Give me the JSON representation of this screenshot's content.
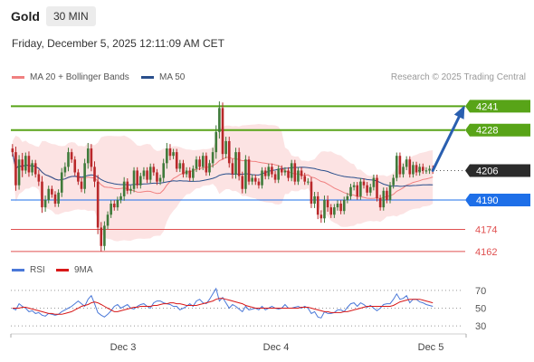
{
  "header": {
    "instrument": "Gold",
    "timeframe": "30 MIN"
  },
  "datetime": "Friday, December 5, 2025 12:11:09 AM CET",
  "credit": "Research © 2025 Trading Central",
  "colors": {
    "up": "#3f7a3a",
    "down": "#b9282a",
    "ma20": "#f08080",
    "ma50": "#2a4f8c",
    "target": "#58a418",
    "pivot": "#1e6fe8",
    "support": "#e05050",
    "arrow": "#2a5fb0",
    "rsi": "#4a78d8",
    "rsi_ma": "#d81818"
  },
  "chart_data": [
    {
      "type": "candlestick",
      "legend": [
        {
          "name": "MA 20 + Bollinger Bands",
          "color": "#f08080"
        },
        {
          "name": "MA 50",
          "color": "#2a4f8c"
        }
      ],
      "x_ticks": [
        "Dec 3",
        "Dec 4",
        "Dec 5"
      ],
      "ylim": [
        4158,
        4251
      ],
      "grid": false,
      "levels": [
        {
          "value": 4241,
          "label": "4241",
          "kind": "target"
        },
        {
          "value": 4228,
          "label": "4228",
          "kind": "target"
        },
        {
          "value": 4206,
          "label": "4206",
          "kind": "current"
        },
        {
          "value": 4190,
          "label": "4190",
          "kind": "pivot"
        },
        {
          "value": 4174,
          "label": "4174",
          "kind": "support"
        },
        {
          "value": 4162,
          "label": "4162",
          "kind": "support"
        }
      ],
      "forecast_arrow": {
        "from": 4206,
        "to": 4240
      },
      "close": [
        4216,
        4198,
        4212,
        4206,
        4214,
        4205,
        4210,
        4204,
        4200,
        4186,
        4190,
        4196,
        4193,
        4188,
        4194,
        4205,
        4208,
        4216,
        4212,
        4205,
        4200,
        4196,
        4210,
        4218,
        4208,
        4200,
        4175,
        4165,
        4176,
        4182,
        4188,
        4186,
        4190,
        4192,
        4200,
        4195,
        4196,
        4206,
        4198,
        4203,
        4206,
        4201,
        4208,
        4205,
        4200,
        4202,
        4210,
        4218,
        4214,
        4216,
        4207,
        4210,
        4204,
        4206,
        4202,
        4207,
        4212,
        4208,
        4214,
        4205,
        4210,
        4216,
        4227,
        4240,
        4215,
        4222,
        4210,
        4204,
        4216,
        4203,
        4196,
        4212,
        4200,
        4202,
        4200,
        4198,
        4206,
        4203,
        4208,
        4204,
        4201,
        4207,
        4205,
        4206,
        4202,
        4210,
        4200,
        4206,
        4203,
        4200,
        4200,
        4188,
        4192,
        4182,
        4180,
        4190,
        4186,
        4182,
        4186,
        4188,
        4184,
        4190,
        4192,
        4197,
        4198,
        4192,
        4200,
        4198,
        4194,
        4197,
        4202,
        4191,
        4186,
        4195,
        4190,
        4198,
        4202,
        4214,
        4204,
        4208,
        4212,
        4204,
        4209,
        4205,
        4208,
        4206,
        4206,
        4207,
        4206
      ],
      "volatility": [
        4,
        5,
        4,
        6,
        3,
        4,
        3,
        3,
        4,
        5,
        4,
        3,
        3,
        3,
        3,
        4,
        4,
        4,
        3,
        3,
        3,
        3,
        4,
        5,
        4,
        5,
        6,
        5,
        4,
        3,
        3,
        3,
        3,
        3,
        4,
        3,
        3,
        3,
        3,
        3,
        3,
        3,
        3,
        3,
        3,
        3,
        4,
        5,
        4,
        3,
        3,
        3,
        3,
        3,
        3,
        3,
        3,
        3,
        3,
        3,
        3,
        4,
        6,
        6,
        5,
        4,
        4,
        4,
        4,
        4,
        4,
        4,
        3,
        3,
        3,
        3,
        3,
        3,
        3,
        3,
        3,
        3,
        3,
        3,
        3,
        3,
        3,
        3,
        3,
        3,
        3,
        4,
        4,
        4,
        4,
        4,
        4,
        3,
        3,
        3,
        3,
        3,
        3,
        3,
        3,
        3,
        3,
        3,
        3,
        3,
        3,
        3,
        3,
        3,
        3,
        3,
        3,
        3,
        3,
        3,
        3,
        3,
        3,
        3,
        3,
        3,
        3,
        3,
        3
      ]
    },
    {
      "type": "line",
      "legend": [
        {
          "name": "RSI",
          "color": "#4a78d8"
        },
        {
          "name": "9MA",
          "color": "#d81818"
        }
      ],
      "y_ticks": [
        70,
        50,
        30
      ],
      "ylim": [
        25,
        78
      ],
      "series": [
        {
          "name": "RSI",
          "values": [
            50,
            48,
            55,
            52,
            50,
            46,
            47,
            44,
            45,
            42,
            41,
            44,
            43,
            42,
            43,
            46,
            48,
            50,
            52,
            55,
            58,
            55,
            52,
            60,
            64,
            55,
            45,
            42,
            40,
            43,
            47,
            52,
            54,
            50,
            52,
            54,
            50,
            49,
            52,
            54,
            55,
            52,
            50,
            56,
            58,
            58,
            56,
            55,
            54,
            52,
            52,
            48,
            50,
            52,
            55,
            52,
            58,
            60,
            56,
            55,
            60,
            66,
            72,
            58,
            62,
            56,
            50,
            54,
            52,
            49,
            46,
            52,
            48,
            49,
            50,
            48,
            52,
            48,
            50,
            52,
            50,
            49,
            50,
            54,
            50,
            50,
            51,
            52,
            50,
            52,
            50,
            44,
            46,
            40,
            39,
            46,
            44,
            44,
            45,
            48,
            48,
            46,
            51,
            55,
            56,
            52,
            56,
            54,
            51,
            53,
            50,
            47,
            50,
            54,
            55,
            55,
            60,
            66,
            60,
            61,
            64,
            56,
            60,
            60,
            57,
            56,
            54,
            53,
            52
          ]
        },
        {
          "name": "9MA",
          "values": [
            50,
            50,
            50,
            51,
            51,
            50,
            49,
            48,
            47,
            46,
            45,
            44,
            44,
            43,
            43,
            43,
            44,
            45,
            46,
            48,
            50,
            52,
            53,
            54,
            56,
            57,
            56,
            54,
            52,
            50,
            48,
            46,
            46,
            47,
            48,
            49,
            50,
            51,
            51,
            52,
            52,
            52,
            52,
            53,
            53,
            54,
            55,
            55,
            56,
            56,
            55,
            55,
            54,
            53,
            53,
            53,
            53,
            54,
            55,
            56,
            57,
            58,
            60,
            61,
            61,
            60,
            59,
            58,
            57,
            56,
            55,
            53,
            52,
            51,
            50,
            50,
            50,
            50,
            50,
            50,
            50,
            50,
            50,
            50,
            50,
            50,
            50,
            50,
            51,
            51,
            51,
            50,
            49,
            48,
            47,
            46,
            46,
            45,
            45,
            45,
            45,
            46,
            46,
            47,
            48,
            49,
            50,
            51,
            52,
            52,
            52,
            52,
            52,
            52,
            52,
            52,
            53,
            55,
            57,
            58,
            59,
            60,
            60,
            60,
            60,
            59,
            58,
            57,
            56
          ]
        }
      ]
    }
  ]
}
